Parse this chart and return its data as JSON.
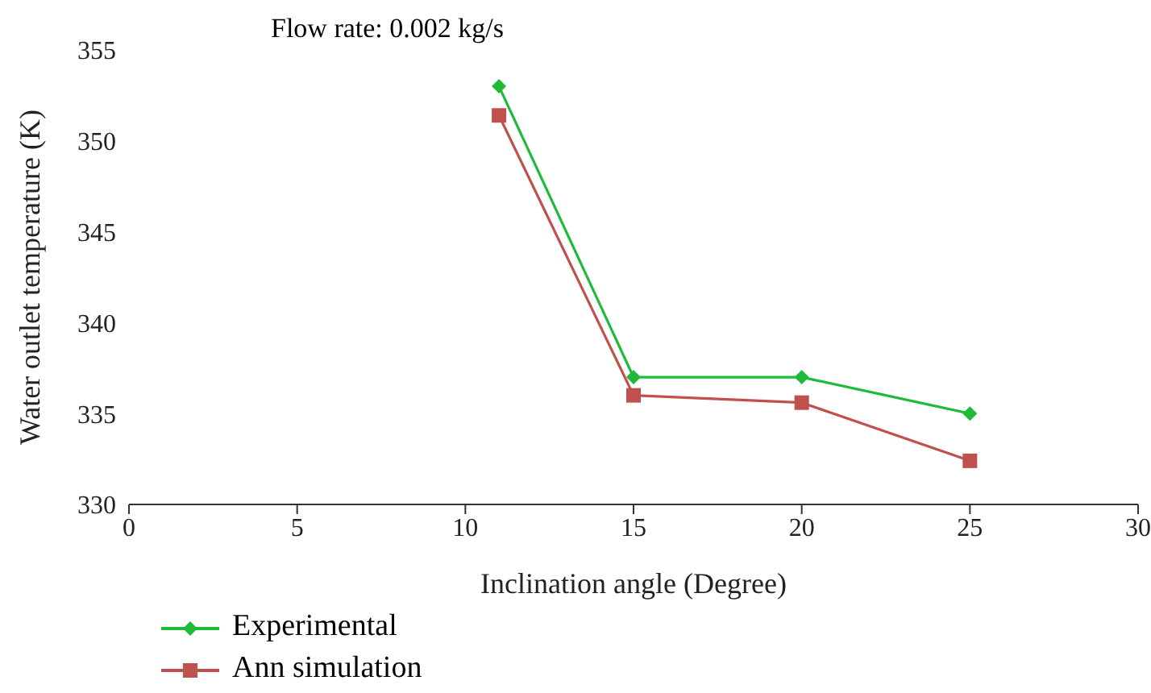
{
  "chart_data": {
    "type": "line",
    "title": "Flow rate: 0.002 kg/s",
    "xlabel": "Inclination angle (Degree)",
    "ylabel": "Water outlet temperature (K)",
    "x": [
      11,
      15,
      20,
      25
    ],
    "series": [
      {
        "name": "Experimental",
        "color": "#1fba3a",
        "values": [
          353,
          337,
          337,
          335
        ],
        "marker": "diamond"
      },
      {
        "name": "Ann simulation",
        "color": "#c0504d",
        "values": [
          351.4,
          336,
          335.6,
          332.4
        ],
        "marker": "square"
      }
    ],
    "xlim": [
      0,
      30
    ],
    "xticks": [
      0,
      5,
      10,
      15,
      20,
      25,
      30
    ],
    "ylim": [
      330,
      355
    ],
    "yticks": [
      330,
      335,
      340,
      345,
      350,
      355
    ],
    "grid": false,
    "legend": "bottom left",
    "line_style": "solid"
  }
}
